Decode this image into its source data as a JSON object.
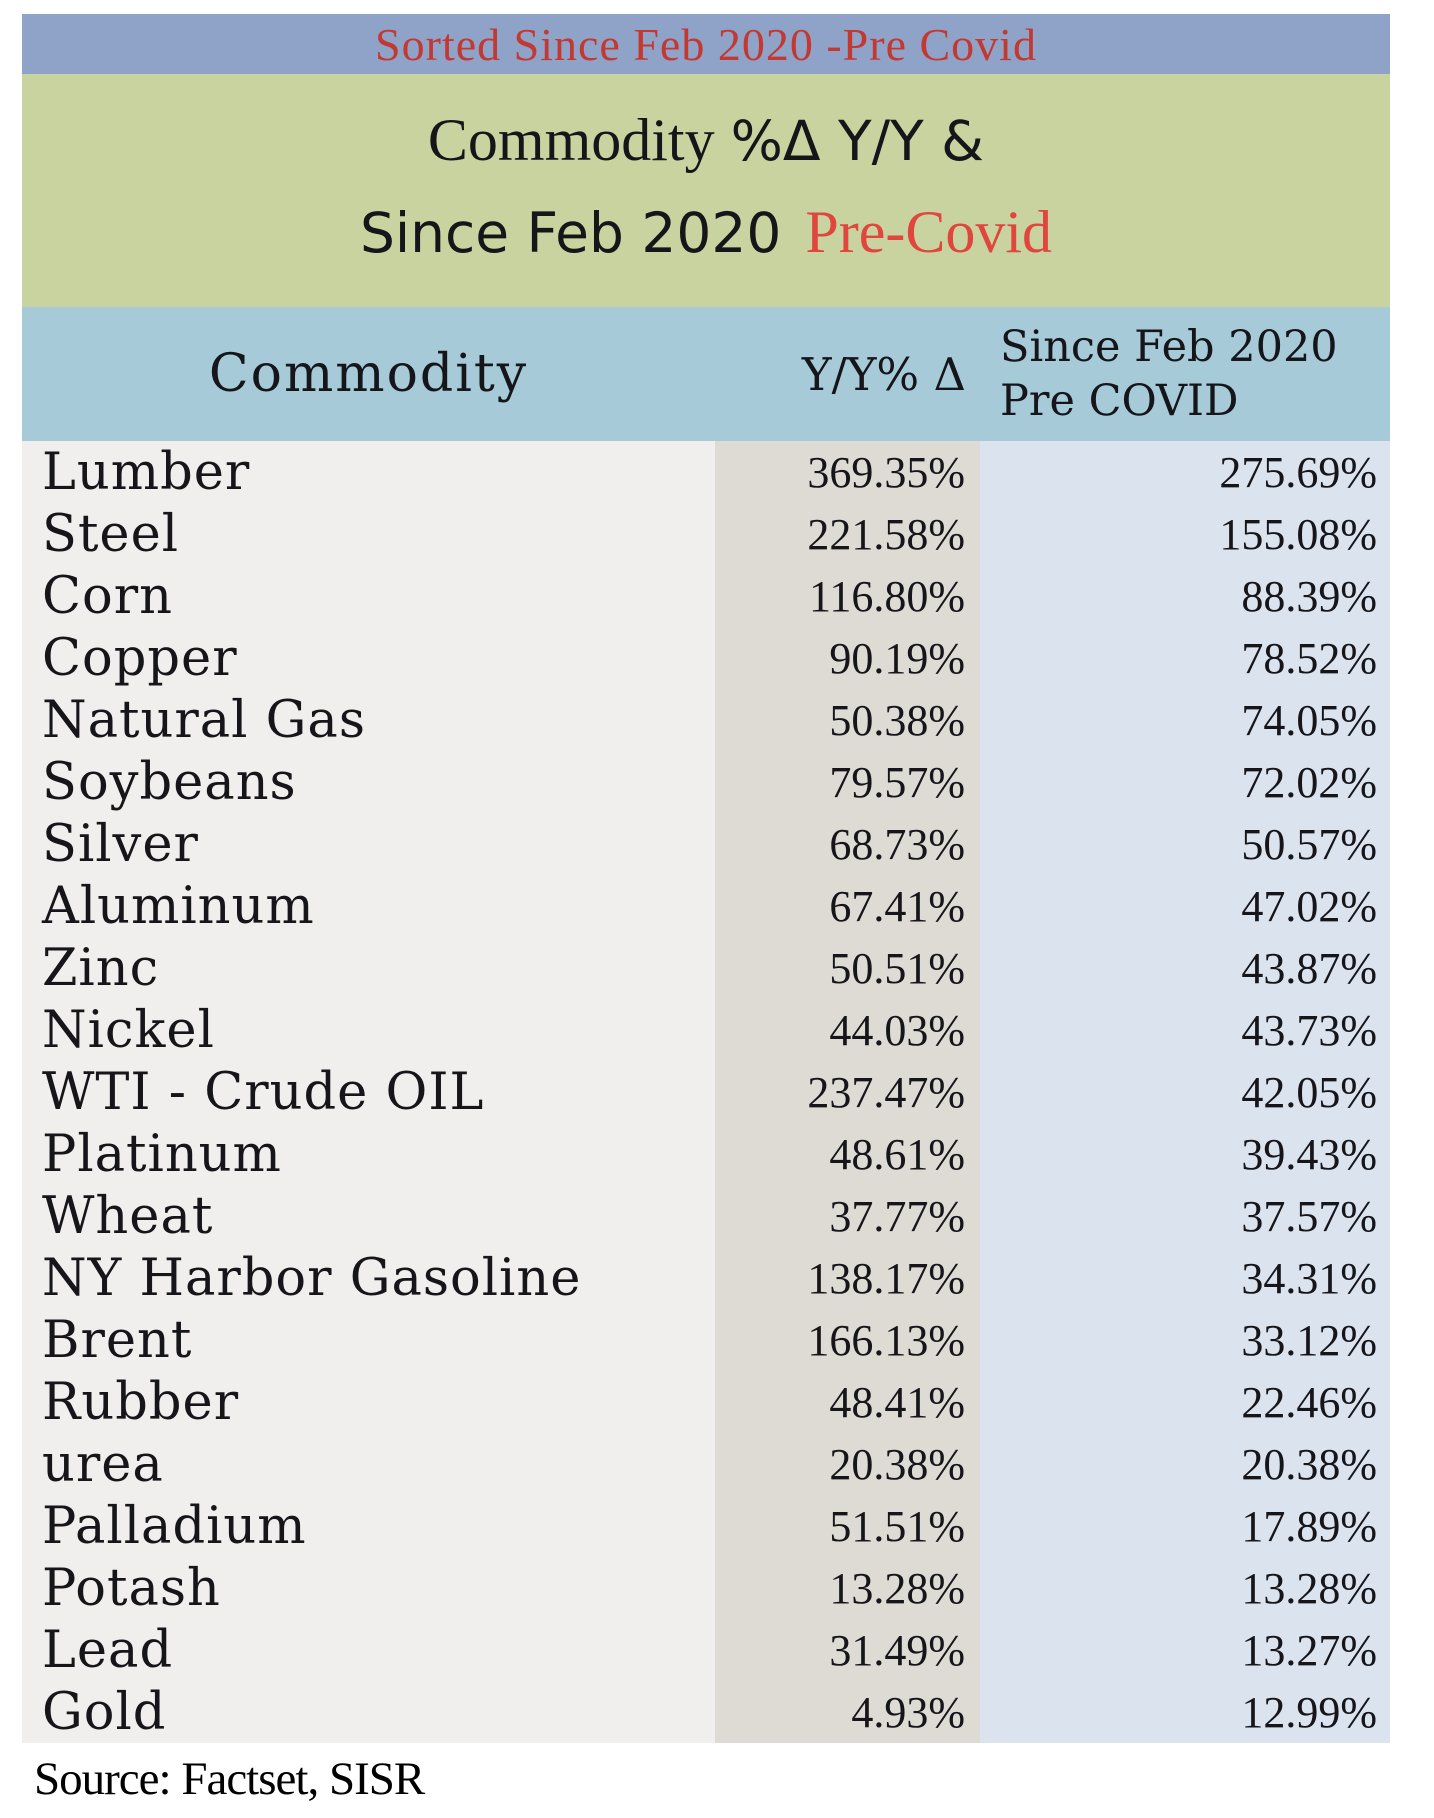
{
  "banner": {
    "text": "Sorted Since Feb 2020 -Pre Covid"
  },
  "title": {
    "line1_serif": "Commodity",
    "line1_sans": "%Δ Y/Y &",
    "line2_sans": "Since Feb 2020",
    "line2_red": "Pre-Covid"
  },
  "header": {
    "commodity": "Commodity",
    "yoy": "Y/Y% Δ",
    "since_line1": "Since Feb 2020",
    "since_line2": "Pre COVID"
  },
  "table": {
    "rows": [
      {
        "name": "Lumber",
        "yoy": "369.35%",
        "since": "275.69%"
      },
      {
        "name": "Steel",
        "yoy": "221.58%",
        "since": "155.08%"
      },
      {
        "name": "Corn",
        "yoy": "116.80%",
        "since": "88.39%"
      },
      {
        "name": "Copper",
        "yoy": "90.19%",
        "since": "78.52%"
      },
      {
        "name": "Natural Gas",
        "yoy": "50.38%",
        "since": "74.05%"
      },
      {
        "name": "Soybeans",
        "yoy": "79.57%",
        "since": "72.02%"
      },
      {
        "name": "Silver",
        "yoy": "68.73%",
        "since": "50.57%"
      },
      {
        "name": "Aluminum",
        "yoy": "67.41%",
        "since": "47.02%"
      },
      {
        "name": "Zinc",
        "yoy": "50.51%",
        "since": "43.87%"
      },
      {
        "name": "Nickel",
        "yoy": "44.03%",
        "since": "43.73%"
      },
      {
        "name": "WTI - Crude OIL",
        "yoy": "237.47%",
        "since": "42.05%"
      },
      {
        "name": "Platinum",
        "yoy": "48.61%",
        "since": "39.43%"
      },
      {
        "name": "Wheat",
        "yoy": "37.77%",
        "since": "37.57%"
      },
      {
        "name": "NY Harbor Gasoline",
        "yoy": "138.17%",
        "since": "34.31%"
      },
      {
        "name": "Brent",
        "yoy": "166.13%",
        "since": "33.12%"
      },
      {
        "name": "Rubber",
        "yoy": "48.41%",
        "since": "22.46%"
      },
      {
        "name": "urea",
        "yoy": "20.38%",
        "since": "20.38%"
      },
      {
        "name": "Palladium",
        "yoy": "51.51%",
        "since": "17.89%"
      },
      {
        "name": "Potash",
        "yoy": "13.28%",
        "since": "13.28%"
      },
      {
        "name": "Lead",
        "yoy": "31.49%",
        "since": "13.27%"
      },
      {
        "name": "Gold",
        "yoy": "4.93%",
        "since": "12.99%"
      }
    ]
  },
  "source": {
    "text": "Source: Factset, SISR"
  },
  "colors": {
    "banner_bg": "#8fa2c8",
    "banner_text": "#c43832",
    "title_bg": "#c9d3a0",
    "title_accent_red": "#e0463e",
    "header_bg": "#a6cad8",
    "col_name_bg": "#f0efed",
    "col_yoy_bg": "#dedbd5",
    "col_since_bg": "#dbe3ee",
    "text": "#15151a"
  },
  "chart_data": {
    "type": "table",
    "title": "Commodity %Δ Y/Y & Since Feb 2020 Pre-Covid",
    "subtitle": "Sorted Since Feb 2020 -Pre Covid",
    "columns": [
      "Commodity",
      "Y/Y% Δ",
      "Since Feb 2020 Pre COVID"
    ],
    "categories": [
      "Lumber",
      "Steel",
      "Corn",
      "Copper",
      "Natural Gas",
      "Soybeans",
      "Silver",
      "Aluminum",
      "Zinc",
      "Nickel",
      "WTI - Crude OIL",
      "Platinum",
      "Wheat",
      "NY Harbor Gasoline",
      "Brent",
      "Rubber",
      "urea",
      "Palladium",
      "Potash",
      "Lead",
      "Gold"
    ],
    "series": [
      {
        "name": "Y/Y% Δ",
        "unit": "%",
        "values": [
          369.35,
          221.58,
          116.8,
          90.19,
          50.38,
          79.57,
          68.73,
          67.41,
          50.51,
          44.03,
          237.47,
          48.61,
          37.77,
          138.17,
          166.13,
          48.41,
          20.38,
          51.51,
          13.28,
          31.49,
          4.93
        ]
      },
      {
        "name": "Since Feb 2020 Pre COVID",
        "unit": "%",
        "values": [
          275.69,
          155.08,
          88.39,
          78.52,
          74.05,
          72.02,
          50.57,
          47.02,
          43.87,
          43.73,
          42.05,
          39.43,
          37.57,
          34.31,
          33.12,
          22.46,
          20.38,
          17.89,
          13.28,
          13.27,
          12.99
        ]
      }
    ],
    "sort_order": "descending by Since Feb 2020 Pre COVID",
    "source": "Factset, SISR"
  }
}
